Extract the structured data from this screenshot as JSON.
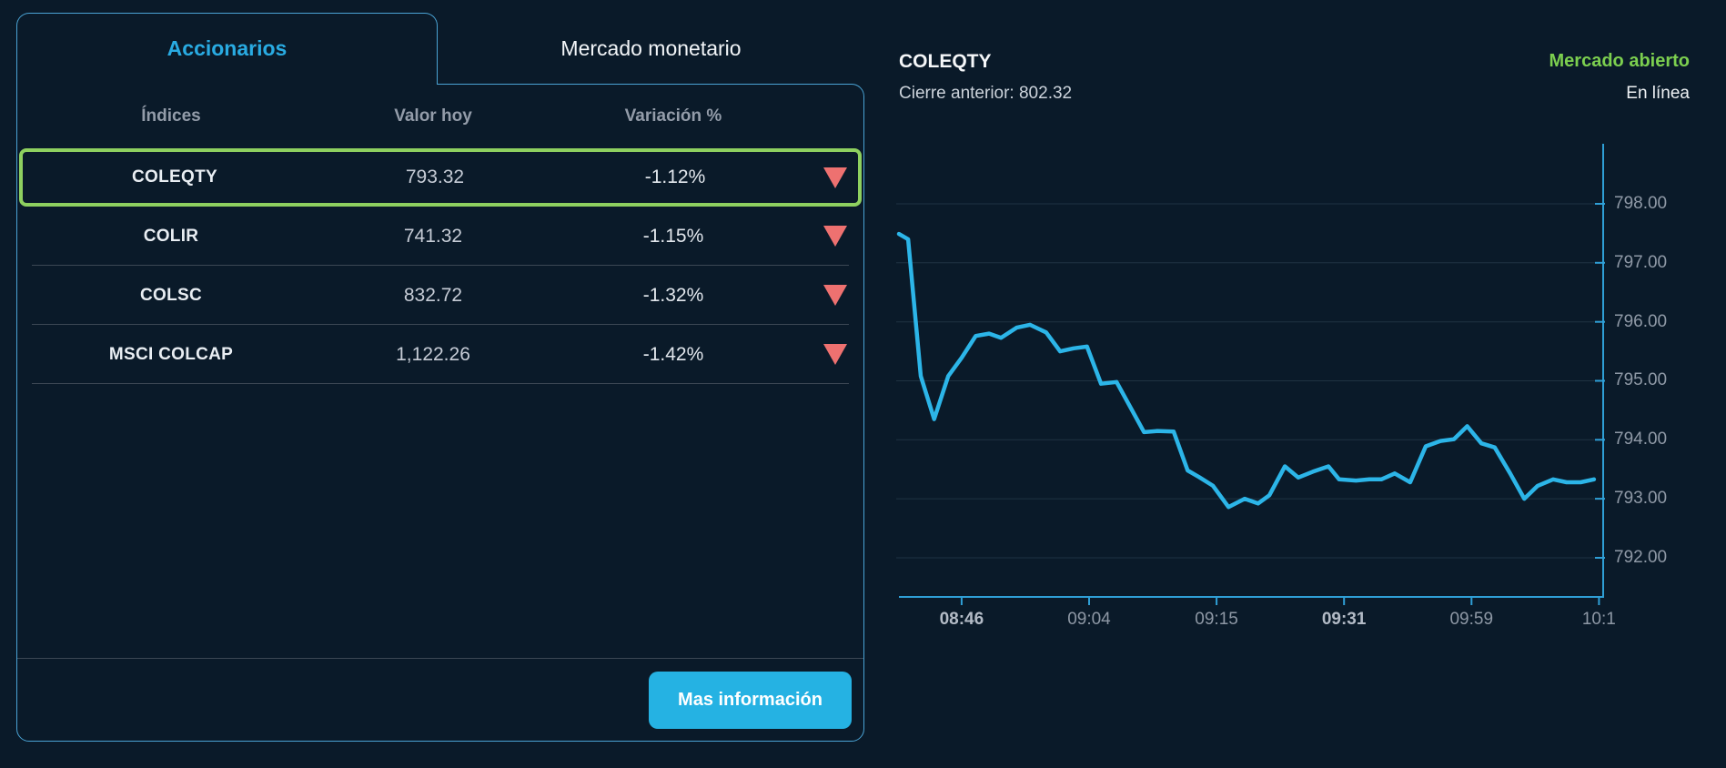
{
  "tabs": [
    {
      "label": "Accionarios",
      "active": true
    },
    {
      "label": "Mercado monetario",
      "active": false
    }
  ],
  "table": {
    "headers": [
      "Índices",
      "Valor hoy",
      "Variación %"
    ],
    "rows": [
      {
        "index": "COLEQTY",
        "value": "793.32",
        "change": "-1.12%",
        "direction": "down",
        "selected": true
      },
      {
        "index": "COLIR",
        "value": "741.32",
        "change": "-1.15%",
        "direction": "down",
        "selected": false
      },
      {
        "index": "COLSC",
        "value": "832.72",
        "change": "-1.32%",
        "direction": "down",
        "selected": false
      },
      {
        "index": "MSCI COLCAP",
        "value": "1,122.26",
        "change": "-1.42%",
        "direction": "down",
        "selected": false
      }
    ]
  },
  "button": {
    "label": "Mas información"
  },
  "chart_header": {
    "title": "COLEQTY",
    "previous_close_text": "Cierre anterior: 802.32",
    "previous_close_value": 802.32,
    "market_status": "Mercado abierto",
    "online_status": "En línea"
  },
  "chart_data": {
    "type": "line",
    "title": "COLEQTY intraday price",
    "xlabel": "",
    "ylabel": "",
    "ylim": [
      791.3,
      799.0
    ],
    "grid": true,
    "legend": false,
    "y_ticks": [
      {
        "value": 798,
        "label": "798.00"
      },
      {
        "value": 797,
        "label": "797.00"
      },
      {
        "value": 796,
        "label": "796.00"
      },
      {
        "value": 795,
        "label": "795.00"
      },
      {
        "value": 794,
        "label": "794.00"
      },
      {
        "value": 793,
        "label": "793.00"
      },
      {
        "value": 792,
        "label": "792.00"
      }
    ],
    "x_ticks": [
      {
        "label": "08:46",
        "pos": 0.089,
        "bold": true
      },
      {
        "label": "09:04",
        "pos": 0.27,
        "bold": false
      },
      {
        "label": "09:15",
        "pos": 0.451,
        "bold": false
      },
      {
        "label": "09:31",
        "pos": 0.632,
        "bold": true
      },
      {
        "label": "09:59",
        "pos": 0.813,
        "bold": false
      },
      {
        "label": "10:1",
        "pos": 0.994,
        "bold": false
      }
    ],
    "series": [
      {
        "name": "COLEQTY",
        "points": [
          [
            0.0,
            797.49
          ],
          [
            0.013,
            797.4
          ],
          [
            0.031,
            795.08
          ],
          [
            0.05,
            794.35
          ],
          [
            0.07,
            795.08
          ],
          [
            0.089,
            795.39
          ],
          [
            0.109,
            795.76
          ],
          [
            0.128,
            795.8
          ],
          [
            0.145,
            795.73
          ],
          [
            0.167,
            795.9
          ],
          [
            0.186,
            795.95
          ],
          [
            0.209,
            795.82
          ],
          [
            0.229,
            795.5
          ],
          [
            0.248,
            795.55
          ],
          [
            0.267,
            795.58
          ],
          [
            0.287,
            794.95
          ],
          [
            0.309,
            794.98
          ],
          [
            0.348,
            794.13
          ],
          [
            0.367,
            794.15
          ],
          [
            0.39,
            794.14
          ],
          [
            0.41,
            793.48
          ],
          [
            0.426,
            793.37
          ],
          [
            0.446,
            793.22
          ],
          [
            0.468,
            792.86
          ],
          [
            0.491,
            793.0
          ],
          [
            0.51,
            792.92
          ],
          [
            0.526,
            793.06
          ],
          [
            0.548,
            793.55
          ],
          [
            0.567,
            793.36
          ],
          [
            0.588,
            793.46
          ],
          [
            0.61,
            793.55
          ],
          [
            0.625,
            793.33
          ],
          [
            0.649,
            793.31
          ],
          [
            0.668,
            793.33
          ],
          [
            0.685,
            793.33
          ],
          [
            0.704,
            793.43
          ],
          [
            0.726,
            793.28
          ],
          [
            0.748,
            793.89
          ],
          [
            0.769,
            793.98
          ],
          [
            0.788,
            794.01
          ],
          [
            0.807,
            794.23
          ],
          [
            0.827,
            793.94
          ],
          [
            0.846,
            793.87
          ],
          [
            0.868,
            793.43
          ],
          [
            0.888,
            793.0
          ],
          [
            0.907,
            793.22
          ],
          [
            0.929,
            793.33
          ],
          [
            0.948,
            793.28
          ],
          [
            0.968,
            793.28
          ],
          [
            0.987,
            793.33
          ]
        ]
      }
    ]
  },
  "colors": {
    "background": "#0a1a29",
    "panel_border": "#4aa3d4",
    "accent_cyan": "#29abe2",
    "highlight_green": "#8ed05f",
    "status_green": "#7ccf4f",
    "negative_red": "#ee7170",
    "button_cyan": "#25b2e3",
    "line_cyan": "#2cb5e8",
    "axis_blue": "#2f9fd6",
    "grid_line": "#1f3342"
  }
}
